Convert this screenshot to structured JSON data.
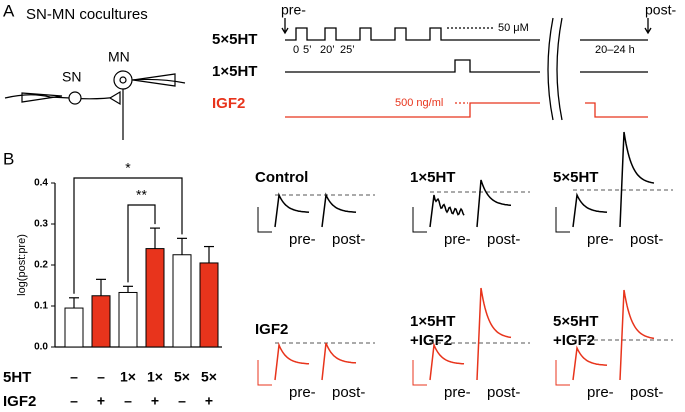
{
  "panel_a": {
    "letter": "A",
    "title": "SN-MN cocultures",
    "cells": [
      "SN",
      "MN"
    ],
    "rows": [
      "5×5HT",
      "1×5HT",
      "IGF2"
    ],
    "pre": "pre-",
    "post": "post-",
    "times": [
      "0",
      "5’",
      "20’",
      "25’"
    ],
    "dose_5ht": "50 μM",
    "delay": "20–24 h",
    "dose_igf2": "500 ng/ml"
  },
  "chart_data": {
    "type": "bar",
    "letter": "B",
    "ylabel": "log(post:pre)",
    "values": [
      0.095,
      0.125,
      0.133,
      0.24,
      0.225,
      0.205
    ],
    "errors": [
      0.025,
      0.04,
      0.015,
      0.05,
      0.04,
      0.04
    ],
    "colors": [
      "#ffffff",
      "#e8341c",
      "#ffffff",
      "#e8341c",
      "#ffffff",
      "#e8341c"
    ],
    "ylim": [
      0,
      0.4
    ],
    "yticks": [
      {
        "value": 0,
        "label": "0.0"
      },
      0.1,
      0.2,
      0.3,
      0.4
    ],
    "rows": [
      {
        "label": "5HT",
        "values": [
          "–",
          "–",
          "1×",
          "1×",
          "5×",
          "5×"
        ]
      },
      {
        "label": "IGF2",
        "values": [
          "–",
          "+",
          "–",
          "+",
          "–",
          "+"
        ]
      }
    ],
    "significance": [
      "*",
      "**"
    ]
  },
  "traces": [
    {
      "title": [
        "Control"
      ],
      "pre": "pre-",
      "post": "post-"
    },
    {
      "title": [
        "1×5HT"
      ],
      "pre": "pre-",
      "post": "post-"
    },
    {
      "title": [
        "5×5HT"
      ],
      "pre": "pre-",
      "post": "post-"
    },
    {
      "title": [
        "IGF2"
      ],
      "pre": "pre-",
      "post": "post-"
    },
    {
      "title": [
        "1×5HT",
        "+IGF2"
      ],
      "pre": "pre-",
      "post": "post-"
    },
    {
      "title": [
        "5×5HT",
        "+IGF2"
      ],
      "pre": "pre-",
      "post": "post-"
    }
  ]
}
